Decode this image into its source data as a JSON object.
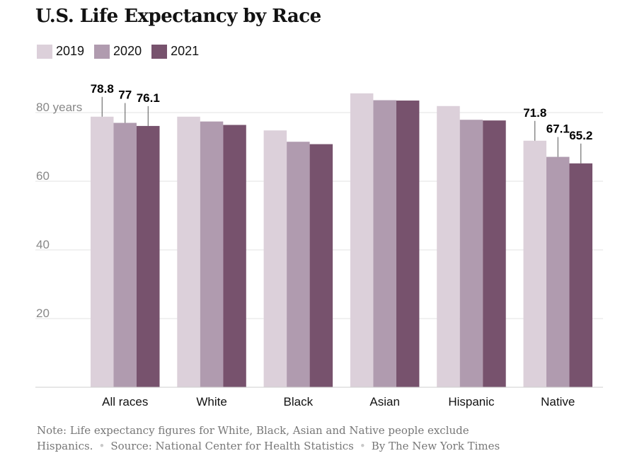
{
  "title": "U.S. Life Expectancy by Race",
  "chart_data": {
    "type": "bar",
    "title": "U.S. Life Expectancy by Race",
    "categories": [
      "All races",
      "White",
      "Black",
      "Asian",
      "Hispanic",
      "Native"
    ],
    "series": [
      {
        "name": "2019",
        "color": "#dcd0da",
        "values": [
          78.8,
          78.8,
          74.8,
          85.6,
          81.9,
          71.8
        ]
      },
      {
        "name": "2020",
        "color": "#b09baf",
        "values": [
          77,
          77.4,
          71.5,
          83.6,
          77.9,
          67.1
        ]
      },
      {
        "name": "2021",
        "color": "#77526d",
        "values": [
          76.1,
          76.4,
          70.8,
          83.5,
          77.7,
          65.2
        ]
      }
    ],
    "y_ticks": [
      {
        "value": 20,
        "label": "20"
      },
      {
        "value": 40,
        "label": "40"
      },
      {
        "value": 60,
        "label": "60"
      },
      {
        "value": 80,
        "label": "80 years"
      }
    ],
    "ylim": [
      0,
      88
    ],
    "grid": true,
    "legend": "top-left",
    "data_labels": [
      {
        "category": "All races",
        "series": "2019",
        "text": "78.8"
      },
      {
        "category": "All races",
        "series": "2020",
        "text": "77"
      },
      {
        "category": "All races",
        "series": "2021",
        "text": "76.1"
      },
      {
        "category": "Native",
        "series": "2019",
        "text": "71.8"
      },
      {
        "category": "Native",
        "series": "2020",
        "text": "67.1"
      },
      {
        "category": "Native",
        "series": "2021",
        "text": "65.2"
      }
    ]
  },
  "footer": {
    "note_line1": "Note: Life expectancy figures for White, Black, Asian and Native people exclude",
    "note_line2": "Hispanics.",
    "source": "Source: National Center for Health Statistics",
    "byline": "By The New York Times"
  }
}
